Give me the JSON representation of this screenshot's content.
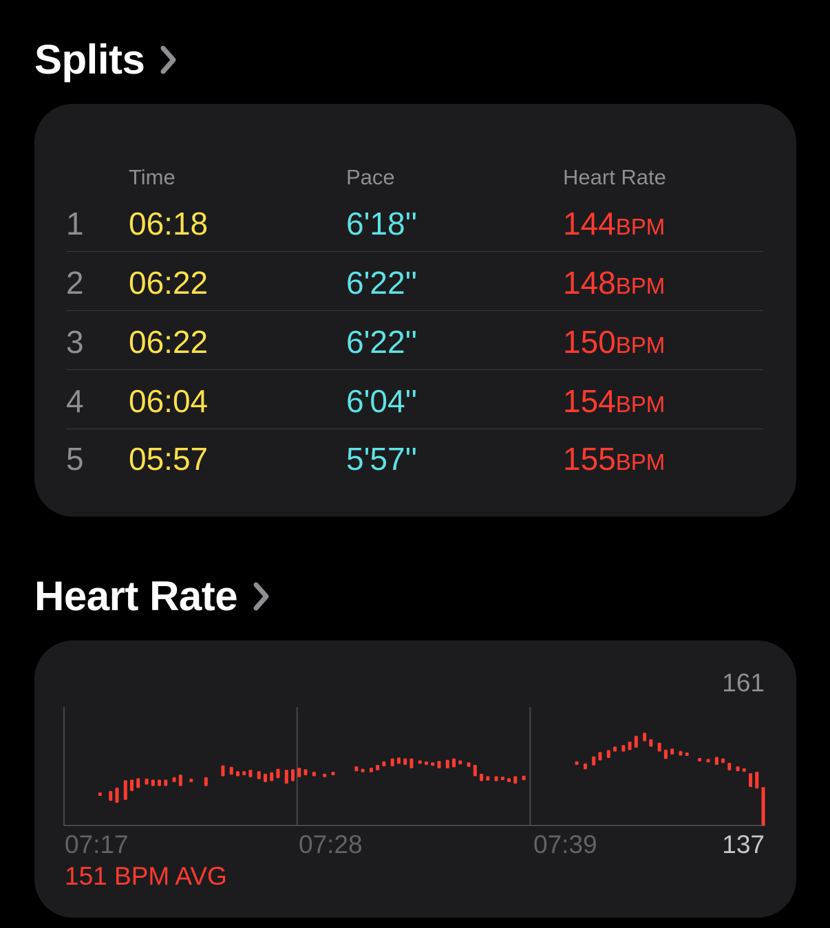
{
  "splits": {
    "title": "Splits",
    "columns": {
      "time": "Time",
      "pace": "Pace",
      "heart_rate": "Heart Rate"
    },
    "rows": [
      {
        "index": "1",
        "time": "06:18",
        "pace": "6'18''",
        "hr": "144",
        "unit": "BPM"
      },
      {
        "index": "2",
        "time": "06:22",
        "pace": "6'22''",
        "hr": "148",
        "unit": "BPM"
      },
      {
        "index": "3",
        "time": "06:22",
        "pace": "6'22''",
        "hr": "150",
        "unit": "BPM"
      },
      {
        "index": "4",
        "time": "06:04",
        "pace": "6'04''",
        "hr": "154",
        "unit": "BPM"
      },
      {
        "index": "5",
        "time": "05:57",
        "pace": "5'57''",
        "hr": "155",
        "unit": "BPM"
      }
    ]
  },
  "heart_rate": {
    "title": "Heart Rate",
    "avg_label": "151 BPM AVG"
  },
  "colors": {
    "background": "#000000",
    "card": "#1c1c1e",
    "time": "#ffe14a",
    "pace": "#5de3e6",
    "heart_rate": "#ff3b30",
    "secondary_text": "#8e8e93"
  },
  "chart_data": {
    "type": "bar",
    "x_tick_labels": [
      "07:17",
      "07:28",
      "07:39"
    ],
    "x_range_minutes": [
      0,
      33
    ],
    "y_range": [
      137,
      161
    ],
    "y_max_label": "161",
    "y_min_label": "137",
    "series": [
      {
        "values": [
          [
            1.7,
            143.7,
            143.3
          ],
          [
            2.2,
            144.0,
            142.0
          ],
          [
            2.5,
            144.7,
            141.6
          ],
          [
            2.9,
            146.2,
            142.2
          ],
          [
            3.2,
            146.3,
            144.0
          ],
          [
            3.5,
            146.6,
            144.6
          ],
          [
            3.9,
            146.5,
            145.3
          ],
          [
            4.2,
            146.3,
            145.0
          ],
          [
            4.5,
            146.3,
            145.0
          ],
          [
            4.8,
            146.3,
            145.0
          ],
          [
            5.2,
            146.8,
            145.8
          ],
          [
            5.5,
            147.3,
            145.0
          ],
          [
            6.0,
            146.5,
            146.1
          ],
          [
            6.7,
            146.8,
            145.0
          ],
          [
            7.5,
            149.2,
            147.0
          ],
          [
            7.9,
            148.9,
            147.3
          ],
          [
            8.2,
            148.0,
            147.0
          ],
          [
            8.5,
            148.0,
            147.2
          ],
          [
            8.8,
            148.3,
            146.8
          ],
          [
            9.2,
            148.0,
            146.4
          ],
          [
            9.5,
            147.5,
            145.8
          ],
          [
            9.8,
            147.8,
            146.0
          ],
          [
            10.1,
            148.5,
            146.6
          ],
          [
            10.5,
            148.3,
            145.5
          ],
          [
            10.8,
            148.4,
            146.0
          ],
          [
            11.1,
            148.7,
            146.8
          ],
          [
            11.4,
            148.4,
            147.2
          ],
          [
            11.8,
            147.9,
            147.0
          ],
          [
            12.3,
            147.5,
            147.1
          ],
          [
            12.7,
            147.9,
            147.5
          ],
          [
            13.8,
            149.0,
            148.0
          ],
          [
            14.1,
            148.5,
            147.9
          ],
          [
            14.5,
            148.7,
            147.8
          ],
          [
            14.8,
            149.3,
            148.2
          ],
          [
            15.1,
            150.0,
            149.0
          ],
          [
            15.5,
            150.6,
            149.0
          ],
          [
            15.8,
            150.8,
            149.5
          ],
          [
            16.1,
            150.6,
            149.3
          ],
          [
            16.4,
            150.6,
            148.6
          ],
          [
            16.8,
            150.2,
            149.5
          ],
          [
            17.1,
            150.0,
            149.7
          ],
          [
            17.4,
            149.8,
            149.5
          ],
          [
            17.7,
            150.1,
            148.6
          ],
          [
            18.1,
            150.3,
            148.6
          ],
          [
            18.4,
            150.6,
            148.8
          ],
          [
            18.7,
            150.2,
            149.4
          ],
          [
            19.1,
            149.8,
            148.9
          ],
          [
            19.4,
            149.3,
            147.0
          ],
          [
            19.7,
            147.5,
            146.0
          ],
          [
            20.0,
            147.0,
            146.1
          ],
          [
            20.4,
            147.0,
            146.0
          ],
          [
            20.7,
            146.9,
            146.3
          ],
          [
            21.0,
            146.6,
            145.8
          ],
          [
            21.3,
            147.0,
            145.5
          ],
          [
            21.7,
            147.1,
            146.2
          ],
          [
            24.2,
            150.0,
            149.6
          ],
          [
            24.6,
            149.6,
            148.4
          ],
          [
            25.0,
            151.0,
            149.2
          ],
          [
            25.3,
            151.9,
            150.2
          ],
          [
            25.7,
            152.3,
            150.7
          ],
          [
            26.0,
            153.0,
            152.0
          ],
          [
            26.4,
            153.3,
            152.0
          ],
          [
            26.7,
            154.0,
            152.3
          ],
          [
            27.0,
            155.2,
            152.8
          ],
          [
            27.4,
            155.8,
            154.1
          ],
          [
            27.7,
            154.5,
            153.0
          ],
          [
            28.1,
            153.8,
            152.0
          ],
          [
            28.4,
            152.4,
            150.5
          ],
          [
            28.7,
            152.6,
            151.4
          ],
          [
            29.1,
            152.1,
            151.2
          ],
          [
            29.4,
            151.8,
            151.6
          ],
          [
            30.0,
            150.7,
            150.2
          ],
          [
            30.4,
            150.5,
            150.1
          ],
          [
            30.8,
            150.9,
            149.3
          ],
          [
            31.1,
            150.6,
            149.7
          ],
          [
            31.4,
            149.7,
            148.2
          ],
          [
            31.8,
            149.0,
            148.0
          ],
          [
            32.1,
            148.6,
            147.9
          ],
          [
            32.4,
            147.6,
            144.8
          ],
          [
            32.7,
            147.9,
            144.5
          ],
          [
            33.0,
            144.8,
            137.0
          ]
        ]
      }
    ]
  }
}
